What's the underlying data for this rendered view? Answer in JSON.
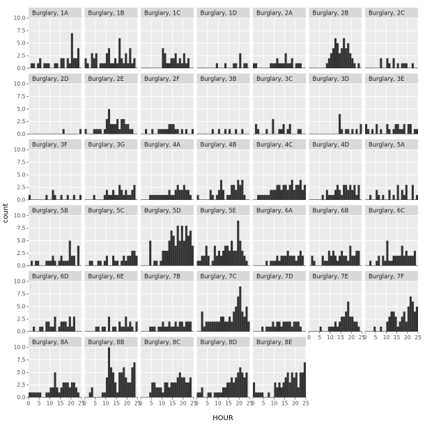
{
  "chart_data": {
    "type": "bar",
    "xlabel": "HOUR",
    "ylabel": "count",
    "xlim": [
      0,
      25
    ],
    "ylim": [
      0,
      10
    ],
    "x_ticks": [
      0,
      5,
      10,
      15,
      20,
      25
    ],
    "y_ticks": [
      0.0,
      2.5,
      5.0,
      7.5,
      10.0
    ],
    "y_tick_labels": [
      "0.0",
      "2.5",
      "5.0",
      "7.5",
      "10.0"
    ],
    "grid": true,
    "colors": {
      "bar": "#333333",
      "panel": "#ebebeb",
      "strip": "#d9d9d9",
      "gridline": "#ffffff"
    },
    "panels": [
      {
        "label": "Burglary, 1A",
        "values": [
          0,
          1,
          1,
          0,
          1,
          2,
          0,
          1,
          1,
          1,
          0,
          0,
          1,
          1,
          0,
          2,
          2,
          0,
          2,
          1,
          7,
          2,
          2,
          4,
          0
        ]
      },
      {
        "label": "Burglary, 1B",
        "values": [
          2,
          1,
          0,
          3,
          2,
          3,
          0,
          1,
          1,
          1,
          3,
          4,
          1,
          1,
          2,
          1,
          6,
          2,
          1,
          3,
          1,
          4,
          1,
          2,
          0
        ]
      },
      {
        "label": "Burglary, 1C",
        "values": [
          0,
          0,
          0,
          0,
          0,
          0,
          0,
          0,
          0,
          0,
          4,
          3,
          1,
          1,
          2,
          2,
          3,
          1,
          2,
          1,
          3,
          1,
          2,
          0,
          0
        ]
      },
      {
        "label": "Burglary, 1D",
        "values": [
          0,
          0,
          0,
          0,
          0,
          0,
          0,
          0,
          0,
          1,
          0,
          0,
          0,
          1,
          0,
          0,
          0,
          1,
          1,
          0,
          3,
          0,
          1,
          1,
          0
        ]
      },
      {
        "label": "Burglary, 2A",
        "values": [
          1,
          1,
          0,
          0,
          0,
          0,
          0,
          0,
          1,
          1,
          1,
          2,
          1,
          1,
          1,
          3,
          1,
          1,
          2,
          0,
          1,
          1,
          1,
          0,
          0
        ]
      },
      {
        "label": "Burglary, 2B",
        "values": [
          0,
          0,
          0,
          0,
          0,
          0,
          0,
          0,
          1,
          2,
          3,
          4,
          6,
          5,
          3,
          4,
          6,
          4,
          5,
          3,
          2,
          1,
          0,
          1,
          0
        ]
      },
      {
        "label": "Burglary, 2C",
        "values": [
          0,
          0,
          0,
          0,
          0,
          0,
          0,
          2,
          0,
          0,
          2,
          1,
          0,
          2,
          0,
          1,
          0,
          1,
          1,
          1,
          0,
          0,
          1,
          0,
          0
        ]
      },
      {
        "label": "Burglary, 2D",
        "values": [
          0,
          0,
          0,
          0,
          0,
          0,
          0,
          0,
          0,
          0,
          0,
          0,
          0,
          0,
          0,
          0,
          1,
          0,
          0,
          0,
          0,
          0,
          0,
          0,
          1
        ]
      },
      {
        "label": "Burglary, 2E",
        "values": [
          1,
          0,
          0,
          0,
          1,
          1,
          1,
          1,
          0,
          1,
          3,
          5,
          2,
          2,
          2,
          3,
          1,
          3,
          3,
          2,
          2,
          1,
          1,
          0,
          0
        ]
      },
      {
        "label": "Burglary, 2F",
        "values": [
          0,
          0,
          1,
          0,
          0,
          1,
          0,
          0,
          1,
          1,
          1,
          1,
          1,
          2,
          2,
          2,
          1,
          1,
          0,
          1,
          0,
          1,
          0,
          0,
          1
        ]
      },
      {
        "label": "Burglary, 3B",
        "values": [
          0,
          0,
          0,
          0,
          0,
          0,
          0,
          1,
          0,
          0,
          1,
          0,
          0,
          1,
          0,
          1,
          0,
          0,
          1,
          0,
          0,
          1,
          0,
          0,
          0
        ]
      },
      {
        "label": "Burglary, 3C",
        "values": [
          0,
          2,
          1,
          0,
          0,
          0,
          1,
          0,
          0,
          3,
          0,
          0,
          1,
          1,
          2,
          0,
          1,
          2,
          0,
          0,
          0,
          1,
          1,
          0,
          0
        ]
      },
      {
        "label": "Burglary, 3D",
        "values": [
          0,
          0,
          0,
          0,
          0,
          0,
          0,
          0,
          0,
          0,
          0,
          0,
          0,
          0,
          4,
          1,
          0,
          1,
          1,
          0,
          1,
          0,
          1,
          0,
          2
        ]
      },
      {
        "label": "Burglary, 3E",
        "values": [
          2,
          1,
          0,
          1,
          0,
          2,
          0,
          1,
          0,
          0,
          2,
          1,
          0,
          1,
          2,
          2,
          1,
          1,
          2,
          0,
          2,
          2,
          0,
          1,
          1
        ]
      },
      {
        "label": "Burglary, 3F",
        "values": [
          1,
          0,
          0,
          0,
          0,
          0,
          0,
          0,
          1,
          0,
          0,
          2,
          1,
          0,
          0,
          1,
          0,
          0,
          1,
          0,
          0,
          1,
          0,
          0,
          1
        ]
      },
      {
        "label": "Burglary, 3G",
        "values": [
          0,
          0,
          0,
          0,
          1,
          0,
          0,
          0,
          0,
          1,
          2,
          1,
          1,
          2,
          1,
          1,
          3,
          2,
          1,
          2,
          1,
          1,
          2,
          3,
          0
        ]
      },
      {
        "label": "Burglary, 4A",
        "values": [
          0,
          0,
          0,
          0,
          1,
          1,
          1,
          1,
          1,
          1,
          1,
          1,
          1,
          2,
          1,
          1,
          2,
          3,
          2,
          2,
          3,
          2,
          2,
          1,
          0
        ]
      },
      {
        "label": "Burglary, 4B",
        "values": [
          1,
          0,
          0,
          0,
          0,
          0,
          2,
          1,
          0,
          1,
          2,
          4,
          2,
          0,
          1,
          1,
          3,
          3,
          2,
          4,
          3,
          4,
          1,
          0,
          0
        ]
      },
      {
        "label": "Burglary, 4C",
        "values": [
          0,
          0,
          1,
          1,
          1,
          1,
          1,
          1,
          2,
          2,
          2,
          3,
          3,
          2,
          3,
          3,
          2,
          3,
          4,
          2,
          3,
          3,
          4,
          2,
          3
        ]
      },
      {
        "label": "Burglary, 4D",
        "values": [
          0,
          0,
          0,
          0,
          0,
          0,
          1,
          0,
          2,
          1,
          1,
          1,
          2,
          3,
          2,
          1,
          3,
          3,
          2,
          3,
          2,
          3,
          1,
          3,
          0
        ]
      },
      {
        "label": "Burglary, 5A",
        "values": [
          0,
          0,
          1,
          0,
          0,
          2,
          1,
          0,
          1,
          0,
          0,
          2,
          0,
          1,
          0,
          3,
          0,
          2,
          1,
          3,
          0,
          0,
          3,
          0,
          1
        ]
      },
      {
        "label": "Burglary, 5B",
        "values": [
          0,
          1,
          0,
          1,
          1,
          0,
          0,
          0,
          1,
          1,
          1,
          2,
          1,
          0,
          1,
          2,
          1,
          1,
          1,
          5,
          2,
          2,
          0,
          4,
          0
        ]
      },
      {
        "label": "Burglary, 5C",
        "values": [
          0,
          0,
          1,
          1,
          0,
          0,
          1,
          1,
          0,
          1,
          2,
          0,
          0,
          2,
          1,
          1,
          0,
          1,
          2,
          1,
          2,
          2,
          3,
          3,
          2
        ]
      },
      {
        "label": "Burglary, 5D",
        "values": [
          0,
          0,
          0,
          0,
          5,
          0,
          1,
          1,
          0,
          1,
          3,
          3,
          3,
          5,
          7,
          6,
          4,
          8,
          5,
          8,
          5,
          8,
          6,
          7,
          4
        ]
      },
      {
        "label": "Burglary, 5E",
        "values": [
          1,
          1,
          2,
          2,
          4,
          2,
          0,
          1,
          4,
          2,
          3,
          2,
          3,
          4,
          4,
          3,
          5,
          3,
          3,
          9,
          5,
          3,
          2,
          1,
          0
        ]
      },
      {
        "label": "Burglary, 6A",
        "values": [
          0,
          0,
          0,
          0,
          0,
          0,
          1,
          0,
          1,
          1,
          1,
          2,
          1,
          2,
          2,
          2,
          3,
          2,
          2,
          2,
          1,
          2,
          3,
          2,
          0
        ]
      },
      {
        "label": "Burglary, 6B",
        "values": [
          0,
          2,
          1,
          0,
          0,
          0,
          2,
          1,
          1,
          3,
          2,
          3,
          2,
          1,
          2,
          3,
          2,
          2,
          1,
          4,
          2,
          2,
          3,
          3,
          0
        ]
      },
      {
        "label": "Burglary, 6C",
        "values": [
          0,
          0,
          1,
          0,
          0,
          1,
          2,
          0,
          2,
          1,
          5,
          1,
          1,
          2,
          2,
          2,
          2,
          4,
          2,
          3,
          2,
          2,
          2,
          3,
          0
        ]
      },
      {
        "label": "Burglary, 6D",
        "values": [
          0,
          0,
          1,
          0,
          0,
          1,
          1,
          0,
          2,
          2,
          1,
          1,
          3,
          0,
          1,
          2,
          2,
          2,
          1,
          3,
          1,
          3,
          0,
          0,
          0
        ]
      },
      {
        "label": "Burglary, 6E",
        "values": [
          0,
          0,
          0,
          0,
          0,
          1,
          1,
          0,
          1,
          1,
          0,
          3,
          0,
          1,
          1,
          0,
          2,
          1,
          1,
          3,
          1,
          2,
          1,
          0,
          2
        ]
      },
      {
        "label": "Burglary, 7B",
        "values": [
          0,
          0,
          0,
          0,
          1,
          1,
          1,
          0,
          1,
          1,
          2,
          1,
          1,
          2,
          1,
          1,
          2,
          1,
          2,
          2,
          1,
          2,
          2,
          2,
          0
        ]
      },
      {
        "label": "Burglary, 7C",
        "values": [
          0,
          0,
          4,
          1,
          2,
          2,
          2,
          2,
          2,
          2,
          2,
          3,
          3,
          2,
          2,
          3,
          2,
          4,
          5,
          7,
          9,
          4,
          3,
          5,
          2
        ]
      },
      {
        "label": "Burglary, 7D",
        "values": [
          0,
          0,
          0,
          0,
          1,
          0,
          1,
          1,
          1,
          2,
          1,
          2,
          2,
          1,
          2,
          2,
          2,
          2,
          1,
          2,
          2,
          2,
          1,
          0,
          0
        ]
      },
      {
        "label": "Burglary, 7E",
        "values": [
          0,
          0,
          0,
          0,
          0,
          1,
          0,
          0,
          0,
          1,
          1,
          1,
          2,
          1,
          2,
          3,
          3,
          4,
          6,
          3,
          3,
          2,
          2,
          1,
          0
        ]
      },
      {
        "label": "Burglary, 7F",
        "values": [
          0,
          0,
          0,
          0,
          1,
          0,
          0,
          1,
          0,
          0,
          2,
          3,
          4,
          4,
          3,
          1,
          2,
          3,
          4,
          2,
          5,
          7,
          6,
          4,
          5
        ]
      },
      {
        "label": "Burglary, 8A",
        "values": [
          1,
          1,
          1,
          1,
          1,
          1,
          0,
          0,
          1,
          1,
          2,
          2,
          5,
          2,
          1,
          2,
          3,
          3,
          3,
          2,
          3,
          3,
          2,
          1,
          0
        ]
      },
      {
        "label": "Burglary, 8B",
        "values": [
          0,
          0,
          1,
          2,
          0,
          0,
          0,
          0,
          1,
          1,
          4,
          10,
          6,
          5,
          3,
          1,
          5,
          5,
          6,
          4,
          3,
          3,
          6,
          7,
          0
        ]
      },
      {
        "label": "Burglary, 8C",
        "values": [
          0,
          0,
          0,
          0,
          1,
          3,
          3,
          2,
          2,
          2,
          1,
          3,
          3,
          2,
          3,
          3,
          3,
          4,
          5,
          4,
          4,
          3,
          3,
          4,
          0
        ]
      },
      {
        "label": "Burglary, 8D",
        "values": [
          1,
          1,
          2,
          0,
          0,
          1,
          1,
          0,
          1,
          1,
          1,
          1,
          2,
          2,
          3,
          3,
          4,
          3,
          4,
          5,
          6,
          5,
          4,
          5,
          0
        ]
      },
      {
        "label": "Burglary, 8E",
        "values": [
          3,
          1,
          1,
          1,
          1,
          0,
          0,
          1,
          0,
          0,
          3,
          2,
          3,
          2,
          3,
          4,
          5,
          3,
          5,
          4,
          5,
          2,
          5,
          5,
          7
        ]
      }
    ]
  }
}
